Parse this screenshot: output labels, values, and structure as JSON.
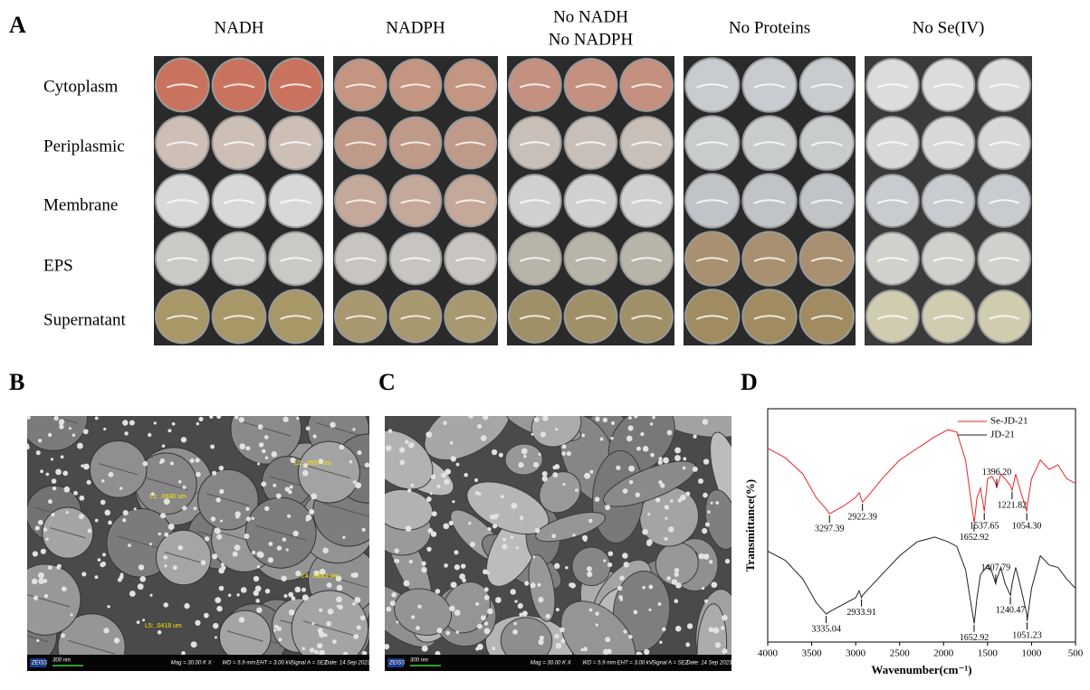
{
  "panel_a": {
    "label": "A",
    "columns": [
      [
        "NADH"
      ],
      [
        "NADPH"
      ],
      [
        "No NADH",
        "No NADPH"
      ],
      [
        "No Proteins"
      ],
      [
        "No Se(IV)"
      ]
    ],
    "rows": [
      "Cytoplasm",
      "Periplasmic",
      "Membrane",
      "EPS",
      "Supernatant"
    ]
  },
  "panel_b": {
    "label": "B",
    "brand": "ZEISS",
    "scale_bar": "300 nm",
    "info": [
      "Mag = 30.00 K X",
      "WD = 5.9 mm",
      "EHT = 3.00 kV",
      "Signal A = SE2",
      "Date: 14 Sep 2023"
    ],
    "measurements": [
      "L1: .0630 um",
      "L2: .0657 um",
      "L4: .0633 um",
      "L5: .0418 um"
    ]
  },
  "panel_c": {
    "label": "C",
    "brand": "ZEISS",
    "scale_bar": "300 nm",
    "info": [
      "Mag = 30.00 K X",
      "WD = 5.9 mm",
      "EHT = 3.00 kV",
      "Signal A = SE2",
      "Date: 14 Sep 2023"
    ]
  },
  "chart_data": {
    "type": "line",
    "label": "D",
    "x_label": "Wavenumber(cm⁻¹)",
    "y_label": "Transmittance(%)",
    "xlim": [
      4000,
      500
    ],
    "xticks": [
      4000,
      3500,
      3000,
      2500,
      2000,
      1500,
      1000,
      500
    ],
    "ylim": [
      0,
      100
    ],
    "legend": "upper right",
    "x": [
      4000,
      3800,
      3600,
      3450,
      3335,
      3297,
      3150,
      3000,
      2960,
      2933,
      2922,
      2850,
      2700,
      2500,
      2300,
      2100,
      1950,
      1850,
      1750,
      1700,
      1652,
      1620,
      1580,
      1537,
      1500,
      1450,
      1407,
      1396,
      1350,
      1300,
      1240,
      1221,
      1180,
      1120,
      1054,
      1051,
      1000,
      900,
      800,
      700,
      600,
      500
    ],
    "series": [
      {
        "name": "Se-JD-21",
        "color": "#e8262a",
        "values": [
          83,
          79,
          72,
          62,
          57,
          55,
          58,
          62,
          64,
          61,
          60,
          63,
          70,
          78,
          83,
          88,
          91,
          90,
          78,
          64,
          51,
          62,
          66,
          56,
          70,
          71,
          68,
          66,
          72,
          70,
          67,
          65,
          72,
          64,
          56,
          58,
          70,
          78,
          74,
          76,
          70,
          68
        ]
      },
      {
        "name": "JD-21",
        "color": "#222222",
        "values": [
          39,
          35,
          27,
          17,
          12,
          13,
          16,
          19,
          22,
          19,
          20,
          23,
          29,
          37,
          43,
          45,
          43,
          41,
          31,
          19,
          8,
          19,
          29,
          31,
          33,
          30,
          25,
          27,
          32,
          25,
          20,
          25,
          32,
          23,
          12,
          9,
          23,
          37,
          33,
          32,
          27,
          23
        ]
      }
    ],
    "annotations": [
      {
        "x": 3297.39,
        "series": 0,
        "position": "below"
      },
      {
        "x": 2922.39,
        "series": 0,
        "position": "below"
      },
      {
        "x": 1652.92,
        "series": 0,
        "position": "below"
      },
      {
        "x": 1537.65,
        "series": 0,
        "position": "below"
      },
      {
        "x": {
          "value": 1396.2,
          "label": "1396.20"
        },
        "series": 0,
        "position": "above"
      },
      {
        "x": 1221.82,
        "series": 0,
        "position": "below"
      },
      {
        "x": {
          "value": 1054.3,
          "label": "1054.30"
        },
        "series": 0,
        "position": "below"
      },
      {
        "x": 3335.04,
        "series": 1,
        "position": "below"
      },
      {
        "x": 2933.91,
        "series": 1,
        "position": "below"
      },
      {
        "x": 1652.92,
        "series": 1,
        "position": "below"
      },
      {
        "x": 1407.79,
        "series": 1,
        "position": "above"
      },
      {
        "x": 1240.47,
        "series": 1,
        "position": "below"
      },
      {
        "x": 1051.23,
        "series": 1,
        "position": "below"
      }
    ]
  }
}
